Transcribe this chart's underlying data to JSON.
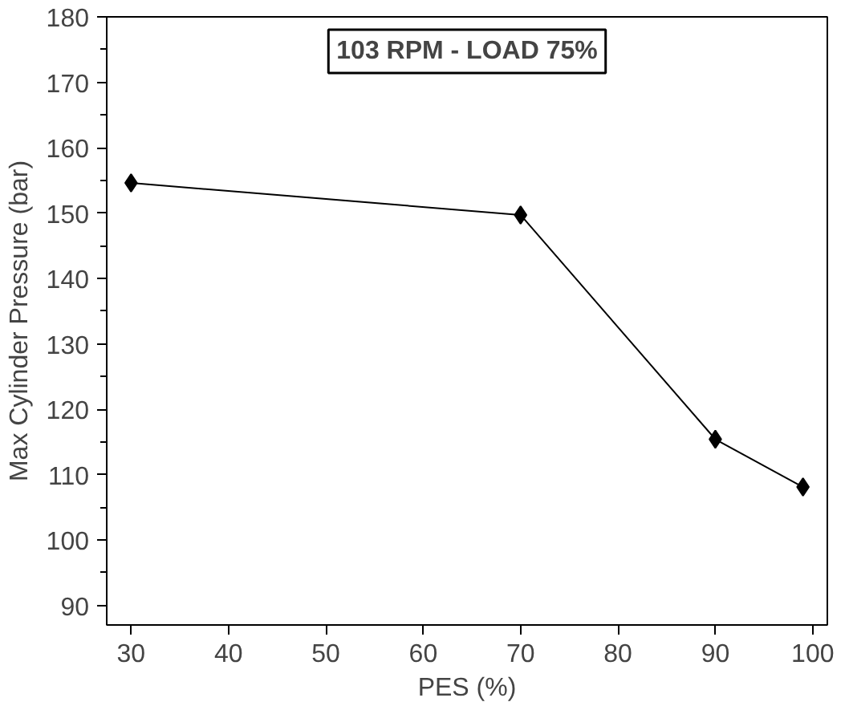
{
  "chart_data": {
    "type": "line",
    "title": "103 RPM - LOAD 75%",
    "xlabel": "PES (%)",
    "ylabel": "Max Cylinder Pressure (bar)",
    "x": [
      30,
      70,
      90,
      99
    ],
    "series": [
      {
        "color": "#000000",
        "values": [
          154.6,
          149.7,
          115.4,
          108.1
        ]
      }
    ],
    "xlim": [
      27.5,
      101.5
    ],
    "xticks": [
      30,
      40,
      50,
      60,
      70,
      80,
      90,
      100
    ],
    "ylim": [
      87,
      180
    ],
    "yticks": [
      90,
      100,
      110,
      120,
      130,
      140,
      150,
      160,
      170,
      180
    ],
    "marker": "diamond",
    "line_style": "solid",
    "grid": false
  }
}
